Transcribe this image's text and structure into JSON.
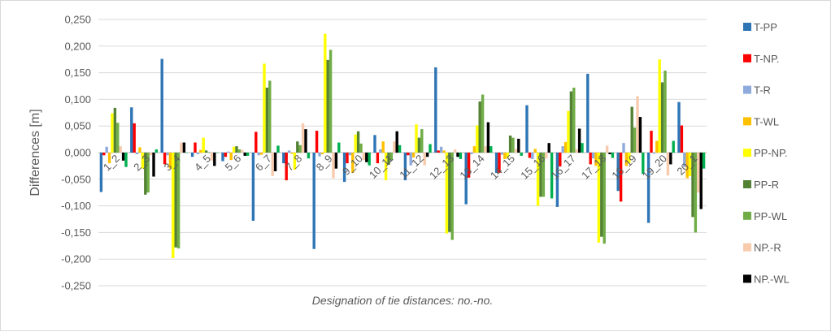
{
  "chart_data": {
    "type": "bar",
    "xlabel": "Designation of tie distances: no.-no.",
    "ylabel": "Differences  [m]",
    "ylim": [
      -0.25,
      0.25
    ],
    "yticks": [
      0.25,
      0.2,
      0.15,
      0.1,
      0.05,
      0.0,
      -0.05,
      -0.1,
      -0.15,
      -0.2,
      -0.25
    ],
    "ytick_labels": [
      "0,250",
      "0,200",
      "0,150",
      "0,100",
      "0,050",
      "0,000",
      "-0,050",
      "-0,100",
      "-0,150",
      "-0,200",
      "-0,250"
    ],
    "grid": "horizontal",
    "legend_position": "right",
    "categories": [
      "1_2",
      "2_3",
      "3_4",
      "4_5",
      "5_6",
      "6_7",
      "7_8",
      "8_9",
      "9_10",
      "10_11",
      "11_12",
      "12_13",
      "13_14",
      "14_15",
      "15_16",
      "16_17",
      "17_18",
      "18_19",
      "19_20",
      "20_1"
    ],
    "series": [
      {
        "name": "T-PP",
        "color": "#2e75b6",
        "values": [
          -0.074,
          0.085,
          0.176,
          -0.008,
          -0.016,
          -0.128,
          -0.02,
          -0.181,
          -0.055,
          0.033,
          -0.052,
          0.16,
          -0.097,
          -0.038,
          0.089,
          -0.102,
          0.148,
          -0.072,
          -0.132,
          0.095
        ]
      },
      {
        "name": "T-NP.",
        "color": "#ff0000",
        "values": [
          -0.005,
          0.055,
          -0.022,
          0.019,
          -0.008,
          0.039,
          -0.052,
          0.041,
          -0.02,
          -0.02,
          -0.005,
          0.004,
          -0.047,
          -0.038,
          -0.01,
          -0.026,
          -0.022,
          -0.092,
          0.041,
          0.051
        ]
      },
      {
        "name": "T-R",
        "color": "#8faadc",
        "values": [
          0.011,
          -0.003,
          -0.005,
          -0.003,
          0.002,
          -0.005,
          0.004,
          -0.007,
          -0.005,
          0.006,
          -0.024,
          0.011,
          -0.003,
          -0.004,
          -0.012,
          0.012,
          -0.011,
          0.018,
          -0.002,
          -0.027
        ]
      },
      {
        "name": "T-WL",
        "color": "#ffc000",
        "values": [
          -0.02,
          0.01,
          -0.03,
          0.005,
          -0.014,
          -0.004,
          -0.002,
          -0.003,
          -0.038,
          0.021,
          -0.009,
          0.004,
          0.012,
          -0.012,
          0.007,
          0.02,
          -0.025,
          -0.025,
          0.022,
          -0.048
        ]
      },
      {
        "name": "PP-NP.",
        "color": "#ffff00",
        "values": [
          0.074,
          -0.03,
          -0.198,
          0.028,
          0.011,
          0.167,
          -0.032,
          0.223,
          0.034,
          -0.052,
          0.053,
          -0.152,
          0.051,
          -0.01,
          -0.1,
          0.078,
          -0.169,
          -0.02,
          0.175,
          -0.044
        ]
      },
      {
        "name": "PP-R",
        "color": "#548235",
        "values": [
          0.084,
          -0.079,
          -0.178,
          0.004,
          0.012,
          0.122,
          0.021,
          0.174,
          0.04,
          -0.023,
          0.028,
          -0.149,
          0.096,
          0.032,
          -0.083,
          0.115,
          -0.158,
          0.086,
          0.132,
          -0.121
        ]
      },
      {
        "name": "PP-WL",
        "color": "#70ad47",
        "values": [
          0.056,
          -0.075,
          -0.18,
          0.001,
          0.006,
          0.135,
          0.014,
          0.193,
          0.017,
          -0.014,
          0.044,
          -0.164,
          0.109,
          0.028,
          -0.083,
          0.122,
          -0.171,
          0.047,
          0.154,
          -0.15
        ]
      },
      {
        "name": "NP.-R",
        "color": "#f8cbad",
        "values": [
          0.012,
          -0.005,
          0.019,
          -0.015,
          0.005,
          -0.044,
          0.055,
          -0.048,
          -0.014,
          0.021,
          -0.024,
          0.006,
          0.012,
          0.007,
          -0.011,
          0.006,
          0.013,
          0.106,
          -0.043,
          -0.075
        ]
      },
      {
        "name": "NP.-WL",
        "color": "#000000",
        "values": [
          -0.015,
          -0.045,
          0.019,
          -0.025,
          -0.006,
          -0.035,
          0.044,
          -0.03,
          -0.018,
          0.04,
          -0.008,
          -0.008,
          0.057,
          0.026,
          0.018,
          0.045,
          -0.003,
          0.067,
          -0.022,
          -0.106
        ]
      },
      {
        "name": "",
        "color": "#00b050",
        "values": [
          -0.027,
          0.006,
          0.0,
          0.0,
          -0.006,
          0.013,
          -0.011,
          0.019,
          -0.024,
          0.014,
          0.016,
          -0.012,
          0.012,
          -0.006,
          -0.086,
          0.018,
          -0.01,
          -0.04,
          0.022,
          -0.03
        ]
      }
    ]
  }
}
